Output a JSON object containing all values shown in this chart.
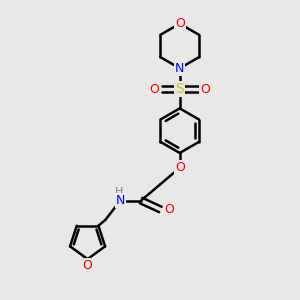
{
  "bg_color": "#e8e8e8",
  "bond_color": "#000000",
  "atom_colors": {
    "O": "#ff0000",
    "N": "#0000ff",
    "S": "#cccc00",
    "H": "#808080",
    "C": "#000000"
  },
  "bond_width": 1.8,
  "font_size": 9,
  "fig_bg": "#e8e8e8"
}
